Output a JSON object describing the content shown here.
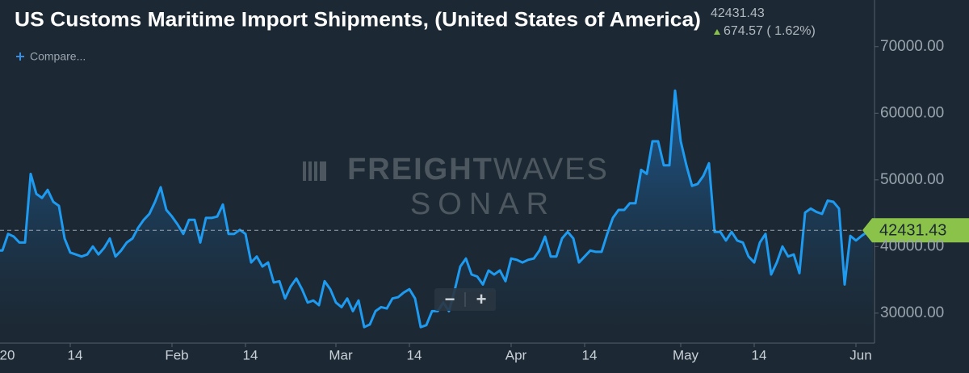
{
  "chart_data": {
    "type": "line",
    "title": "US Customs Maritime Import Shipments, (United States of America)",
    "current_value": "42431.43",
    "change": "674.57 ( 1.62%)",
    "compare": "Compare...",
    "zoom_out": "−",
    "zoom_in": "+",
    "watermark": [
      "FREIGHT",
      "WAVES",
      "SONAR"
    ],
    "color": "#1e9bf0",
    "reference_line": 42431.43,
    "categories": [
      "20",
      null,
      null,
      null,
      null,
      null,
      null,
      null,
      null,
      null,
      null,
      null,
      null,
      "14",
      null,
      null,
      null,
      null,
      null,
      null,
      null,
      null,
      null,
      null,
      null,
      null,
      null,
      null,
      null,
      null,
      null,
      "Feb",
      null,
      null,
      null,
      null,
      null,
      null,
      null,
      null,
      null,
      null,
      null,
      null,
      "14",
      null,
      null,
      null,
      null,
      null,
      null,
      null,
      null,
      null,
      null,
      null,
      null,
      null,
      null,
      null,
      "Mar",
      null,
      null,
      null,
      null,
      null,
      null,
      null,
      null,
      null,
      null,
      null,
      null,
      "14",
      null,
      null,
      null,
      null,
      null,
      null,
      null,
      null,
      null,
      null,
      null,
      null,
      null,
      null,
      null,
      null,
      null,
      "Apr",
      null,
      null,
      null,
      null,
      null,
      null,
      null,
      null,
      null,
      null,
      null,
      null,
      "14",
      null,
      null,
      null,
      null,
      null,
      null,
      null,
      null,
      null,
      null,
      null,
      null,
      null,
      null,
      null,
      null,
      "May",
      null,
      null,
      null,
      null,
      null,
      null,
      null,
      null,
      null,
      null,
      null,
      null,
      "14",
      null,
      null,
      null,
      null,
      null,
      null,
      null,
      null,
      null,
      null,
      null,
      null,
      null,
      null,
      null,
      null,
      null,
      "Jun",
      null,
      null,
      null
    ],
    "values": [
      39400,
      39400,
      41900,
      41500,
      40600,
      40600,
      50900,
      47900,
      47300,
      48500,
      46700,
      46100,
      41200,
      39100,
      38800,
      38500,
      38800,
      40000,
      38800,
      39800,
      41200,
      38500,
      39400,
      40600,
      41200,
      42800,
      44000,
      44900,
      46700,
      48900,
      45500,
      44500,
      43300,
      41900,
      44000,
      44000,
      40600,
      44300,
      44300,
      44500,
      46300,
      41900,
      41900,
      42500,
      41900,
      37600,
      38500,
      37000,
      37600,
      34600,
      34800,
      32200,
      34000,
      35200,
      33600,
      31600,
      31900,
      31200,
      34800,
      33600,
      31600,
      30900,
      32200,
      30300,
      31900,
      27900,
      28300,
      30300,
      30900,
      30700,
      32200,
      32400,
      33100,
      33600,
      32200,
      27900,
      28200,
      30300,
      30300,
      31600,
      30300,
      33400,
      37000,
      38200,
      35800,
      35500,
      34300,
      36400,
      35800,
      36400,
      34800,
      38200,
      38000,
      37600,
      38000,
      38200,
      39400,
      41500,
      38500,
      38500,
      41200,
      42200,
      41200,
      37600,
      38500,
      39400,
      39200,
      39200,
      41900,
      44300,
      45500,
      45500,
      46500,
      46500,
      51500,
      50900,
      55800,
      55800,
      52200,
      52200,
      63400,
      55800,
      52200,
      49100,
      49400,
      50600,
      52500,
      42200,
      42200,
      40900,
      42200,
      40900,
      40600,
      38500,
      37600,
      40600,
      41900,
      35800,
      37600,
      40000,
      38500,
      38800,
      36000,
      45100,
      45700,
      45200,
      44900,
      46900,
      46700,
      45700,
      34300,
      41600,
      40900,
      41600,
      42200,
      42431.43
    ],
    "ylim": [
      25500,
      77000
    ],
    "yticks": [
      {
        "value": 30000,
        "label": "30000.00"
      },
      {
        "value": 40000,
        "label": "40000.00"
      },
      {
        "value": 50000,
        "label": "50000.00"
      },
      {
        "value": 60000,
        "label": "60000.00"
      },
      {
        "value": 70000,
        "label": "70000.00"
      }
    ]
  }
}
